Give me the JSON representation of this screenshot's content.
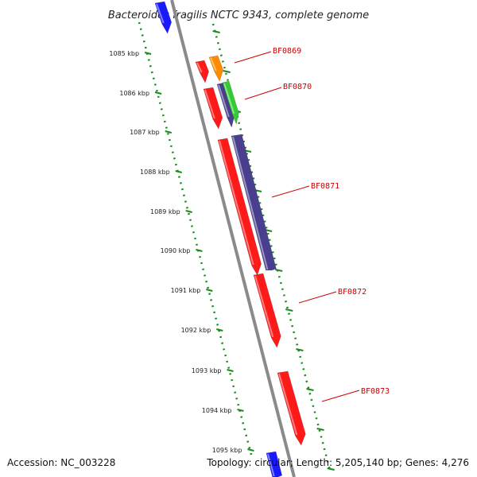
{
  "title": "Bacteroides fragilis NCTC 9343, complete genome",
  "footer": {
    "accession": "Accession: NC_003228",
    "topology": "Topology: circular; Length: 5,205,140 bp; Genes: 4,276"
  },
  "kbp_labels": [
    "1085 kbp",
    "1086 kbp",
    "1087 kbp",
    "1088 kbp",
    "1089 kbp",
    "1090 kbp",
    "1091 kbp",
    "1092 kbp",
    "1093 kbp",
    "1094 kbp",
    "1095 kbp"
  ],
  "gene_labels": [
    "BF0869",
    "BF0870",
    "BF0871",
    "BF0872",
    "BF0873"
  ],
  "colors": {
    "backbone": "#8a8a8a",
    "ruler": "#1a8a1a",
    "label": "#cc0000",
    "leader": "#cc0000",
    "red": "#ff1a1a",
    "orange": "#ff8c00",
    "purple": "#4a3f8f",
    "green": "#33cc33",
    "blue": "#1a1aff"
  }
}
